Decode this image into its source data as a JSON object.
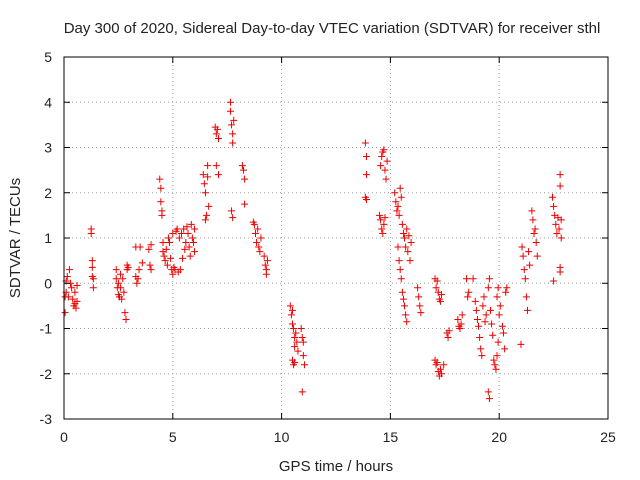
{
  "chart_data": {
    "type": "scatter",
    "title": "Day 300 of 2020, Sidereal Day-to-day VTEC variation (SDTVAR) for receiver sthl",
    "xlabel": "GPS time / hours",
    "ylabel": "SDTVAR / TECUs",
    "xlim": [
      0,
      25
    ],
    "ylim": [
      -3,
      5
    ],
    "xticks": [
      0,
      5,
      10,
      15,
      20,
      25
    ],
    "yticks": [
      -3,
      -2,
      -1,
      0,
      1,
      2,
      3,
      4,
      5
    ],
    "grid": true,
    "marker": "plus",
    "color": "#ee0000",
    "points": [
      [
        0.05,
        -0.65
      ],
      [
        0.05,
        -0.3
      ],
      [
        0.1,
        0.05
      ],
      [
        0.1,
        -0.2
      ],
      [
        0.15,
        0.15
      ],
      [
        0.2,
        -0.3
      ],
      [
        0.25,
        0.3
      ],
      [
        0.3,
        0.0
      ],
      [
        0.35,
        -0.1
      ],
      [
        0.4,
        -0.35
      ],
      [
        0.45,
        -0.5
      ],
      [
        0.5,
        -0.45
      ],
      [
        0.5,
        -0.2
      ],
      [
        0.55,
        -0.55
      ],
      [
        0.6,
        -0.4
      ],
      [
        0.6,
        -0.05
      ],
      [
        1.25,
        1.2
      ],
      [
        1.25,
        1.1
      ],
      [
        1.3,
        0.5
      ],
      [
        1.3,
        0.35
      ],
      [
        1.3,
        0.15
      ],
      [
        1.35,
        0.1
      ],
      [
        1.35,
        -0.1
      ],
      [
        2.4,
        0.3
      ],
      [
        2.4,
        0.1
      ],
      [
        2.45,
        -0.1
      ],
      [
        2.5,
        -0.25
      ],
      [
        2.5,
        0.0
      ],
      [
        2.55,
        -0.3
      ],
      [
        2.6,
        0.2
      ],
      [
        2.6,
        -0.1
      ],
      [
        2.65,
        -0.35
      ],
      [
        2.7,
        0.1
      ],
      [
        2.75,
        -0.2
      ],
      [
        2.8,
        -0.65
      ],
      [
        2.85,
        -0.8
      ],
      [
        2.9,
        0.4
      ],
      [
        2.9,
        0.3
      ],
      [
        2.95,
        0.35
      ],
      [
        3.3,
        0.8
      ],
      [
        3.3,
        0.15
      ],
      [
        3.35,
        0.0
      ],
      [
        3.4,
        0.1
      ],
      [
        3.45,
        0.3
      ],
      [
        3.5,
        0.8
      ],
      [
        3.6,
        0.45
      ],
      [
        3.9,
        0.75
      ],
      [
        3.95,
        0.4
      ],
      [
        4.0,
        0.3
      ],
      [
        4.0,
        0.85
      ],
      [
        4.4,
        2.3
      ],
      [
        4.45,
        2.1
      ],
      [
        4.45,
        1.8
      ],
      [
        4.5,
        1.6
      ],
      [
        4.5,
        1.5
      ],
      [
        4.55,
        0.9
      ],
      [
        4.55,
        0.7
      ],
      [
        4.6,
        0.6
      ],
      [
        4.65,
        0.5
      ],
      [
        4.7,
        0.75
      ],
      [
        4.75,
        0.4
      ],
      [
        4.8,
        1.0
      ],
      [
        4.85,
        0.9
      ],
      [
        4.9,
        0.55
      ],
      [
        4.95,
        0.3
      ],
      [
        5.0,
        0.2
      ],
      [
        5.0,
        1.1
      ],
      [
        5.05,
        0.35
      ],
      [
        5.1,
        0.3
      ],
      [
        5.15,
        1.15
      ],
      [
        5.2,
        1.2
      ],
      [
        5.25,
        0.25
      ],
      [
        5.3,
        1.0
      ],
      [
        5.35,
        0.3
      ],
      [
        5.4,
        1.1
      ],
      [
        5.45,
        0.55
      ],
      [
        5.5,
        1.2
      ],
      [
        5.55,
        0.75
      ],
      [
        5.6,
        0.9
      ],
      [
        5.65,
        1.25
      ],
      [
        5.7,
        1.1
      ],
      [
        5.75,
        0.8
      ],
      [
        5.8,
        0.6
      ],
      [
        5.85,
        1.3
      ],
      [
        5.9,
        1.0
      ],
      [
        5.95,
        0.9
      ],
      [
        6.0,
        1.2
      ],
      [
        6.0,
        0.7
      ],
      [
        6.4,
        2.4
      ],
      [
        6.45,
        2.2
      ],
      [
        6.5,
        2.0
      ],
      [
        6.5,
        1.4
      ],
      [
        6.55,
        1.5
      ],
      [
        6.6,
        2.6
      ],
      [
        6.6,
        2.35
      ],
      [
        6.65,
        1.7
      ],
      [
        6.95,
        3.45
      ],
      [
        7.0,
        3.3
      ],
      [
        7.05,
        3.4
      ],
      [
        7.1,
        3.2
      ],
      [
        7.0,
        2.6
      ],
      [
        7.1,
        2.4
      ],
      [
        7.65,
        4.0
      ],
      [
        7.65,
        3.8
      ],
      [
        7.7,
        3.5
      ],
      [
        7.75,
        3.3
      ],
      [
        7.75,
        3.1
      ],
      [
        7.8,
        3.6
      ],
      [
        7.7,
        1.6
      ],
      [
        7.75,
        1.45
      ],
      [
        8.2,
        2.6
      ],
      [
        8.25,
        2.5
      ],
      [
        8.3,
        2.3
      ],
      [
        8.3,
        1.75
      ],
      [
        8.7,
        1.35
      ],
      [
        8.75,
        1.3
      ],
      [
        8.8,
        1.1
      ],
      [
        8.85,
        0.9
      ],
      [
        8.9,
        1.2
      ],
      [
        8.95,
        0.8
      ],
      [
        9.0,
        0.7
      ],
      [
        9.05,
        1.0
      ],
      [
        9.2,
        0.6
      ],
      [
        9.25,
        0.4
      ],
      [
        9.3,
        0.3
      ],
      [
        9.3,
        0.2
      ],
      [
        9.35,
        0.5
      ],
      [
        10.4,
        -0.5
      ],
      [
        10.45,
        -0.7
      ],
      [
        10.5,
        -0.6
      ],
      [
        10.5,
        -0.9
      ],
      [
        10.55,
        -1.0
      ],
      [
        10.6,
        -1.2
      ],
      [
        10.6,
        -1.4
      ],
      [
        10.65,
        -1.1
      ],
      [
        10.7,
        -1.3
      ],
      [
        10.75,
        -1.5
      ],
      [
        10.5,
        -1.7
      ],
      [
        10.55,
        -1.8
      ],
      [
        10.6,
        -1.75
      ],
      [
        10.9,
        -1.0
      ],
      [
        10.95,
        -1.2
      ],
      [
        11.0,
        -1.6
      ],
      [
        11.05,
        -1.8
      ],
      [
        10.95,
        -2.4
      ],
      [
        11.0,
        -1.3
      ],
      [
        13.85,
        3.1
      ],
      [
        13.9,
        2.8
      ],
      [
        13.9,
        2.4
      ],
      [
        13.85,
        1.9
      ],
      [
        13.9,
        1.85
      ],
      [
        14.55,
        2.6
      ],
      [
        14.6,
        2.8
      ],
      [
        14.65,
        2.9
      ],
      [
        14.7,
        2.95
      ],
      [
        14.75,
        2.5
      ],
      [
        14.8,
        2.3
      ],
      [
        14.85,
        2.7
      ],
      [
        14.5,
        1.5
      ],
      [
        14.55,
        1.4
      ],
      [
        14.6,
        1.2
      ],
      [
        14.65,
        1.1
      ],
      [
        14.7,
        1.3
      ],
      [
        14.75,
        1.45
      ],
      [
        15.2,
        2.0
      ],
      [
        15.25,
        1.8
      ],
      [
        15.3,
        1.6
      ],
      [
        15.35,
        1.7
      ],
      [
        15.4,
        1.5
      ],
      [
        15.45,
        2.1
      ],
      [
        15.5,
        1.9
      ],
      [
        15.55,
        1.3
      ],
      [
        15.6,
        1.1
      ],
      [
        15.65,
        1.0
      ],
      [
        15.7,
        0.8
      ],
      [
        15.75,
        1.2
      ],
      [
        15.8,
        0.7
      ],
      [
        15.85,
        1.05
      ],
      [
        15.9,
        0.5
      ],
      [
        15.95,
        0.9
      ],
      [
        15.35,
        0.8
      ],
      [
        15.4,
        0.5
      ],
      [
        15.45,
        0.3
      ],
      [
        15.5,
        0.1
      ],
      [
        15.55,
        -0.2
      ],
      [
        15.6,
        -0.35
      ],
      [
        15.65,
        -0.5
      ],
      [
        15.7,
        -0.7
      ],
      [
        15.75,
        -0.85
      ],
      [
        16.25,
        -0.1
      ],
      [
        16.3,
        -0.3
      ],
      [
        16.35,
        -0.5
      ],
      [
        16.4,
        -0.65
      ],
      [
        17.05,
        0.1
      ],
      [
        17.1,
        -0.1
      ],
      [
        17.15,
        0.05
      ],
      [
        17.2,
        -0.2
      ],
      [
        17.25,
        -0.35
      ],
      [
        17.3,
        -0.4
      ],
      [
        17.35,
        -0.25
      ],
      [
        17.05,
        -1.7
      ],
      [
        17.1,
        -1.8
      ],
      [
        17.15,
        -1.75
      ],
      [
        17.2,
        -1.95
      ],
      [
        17.25,
        -2.05
      ],
      [
        17.3,
        -1.9
      ],
      [
        17.35,
        -2.0
      ],
      [
        17.45,
        -1.8
      ],
      [
        17.6,
        -1.1
      ],
      [
        17.65,
        -1.2
      ],
      [
        17.7,
        -1.05
      ],
      [
        18.1,
        -0.8
      ],
      [
        18.15,
        -0.95
      ],
      [
        18.2,
        -1.0
      ],
      [
        18.25,
        -0.9
      ],
      [
        18.3,
        -0.7
      ],
      [
        18.5,
        0.1
      ],
      [
        18.55,
        -0.3
      ],
      [
        18.6,
        -0.2
      ],
      [
        18.8,
        0.1
      ],
      [
        18.9,
        -0.4
      ],
      [
        18.95,
        -0.6
      ],
      [
        19.0,
        -0.8
      ],
      [
        19.05,
        -0.95
      ],
      [
        19.1,
        -1.2
      ],
      [
        19.15,
        -1.45
      ],
      [
        19.2,
        -1.6
      ],
      [
        19.25,
        -0.5
      ],
      [
        19.3,
        -0.3
      ],
      [
        19.35,
        -0.85
      ],
      [
        19.4,
        -0.7
      ],
      [
        19.5,
        -2.4
      ],
      [
        19.55,
        -2.55
      ],
      [
        19.5,
        -0.1
      ],
      [
        19.55,
        0.1
      ],
      [
        19.6,
        -0.6
      ],
      [
        19.65,
        -0.9
      ],
      [
        19.7,
        -1.15
      ],
      [
        19.75,
        -1.7
      ],
      [
        19.8,
        -1.8
      ],
      [
        19.85,
        -1.9
      ],
      [
        19.9,
        -1.6
      ],
      [
        19.95,
        -1.3
      ],
      [
        20.0,
        -0.7
      ],
      [
        20.05,
        -0.5
      ],
      [
        19.9,
        -0.3
      ],
      [
        19.95,
        -0.1
      ],
      [
        20.15,
        -0.95
      ],
      [
        20.2,
        -1.1
      ],
      [
        20.25,
        -1.45
      ],
      [
        20.3,
        -0.2
      ],
      [
        20.35,
        -0.1
      ],
      [
        21.0,
        -1.35
      ],
      [
        21.05,
        0.8
      ],
      [
        21.1,
        0.6
      ],
      [
        21.15,
        0.3
      ],
      [
        21.2,
        0.1
      ],
      [
        21.25,
        -0.3
      ],
      [
        21.3,
        -0.6
      ],
      [
        21.35,
        0.7
      ],
      [
        21.4,
        0.4
      ],
      [
        21.5,
        1.6
      ],
      [
        21.55,
        1.4
      ],
      [
        21.6,
        1.1
      ],
      [
        21.65,
        1.2
      ],
      [
        21.7,
        0.9
      ],
      [
        21.75,
        0.6
      ],
      [
        22.45,
        1.9
      ],
      [
        22.5,
        1.7
      ],
      [
        22.55,
        1.5
      ],
      [
        22.6,
        1.3
      ],
      [
        22.65,
        1.1
      ],
      [
        22.5,
        0.05
      ],
      [
        22.7,
        1.45
      ],
      [
        22.75,
        1.2
      ],
      [
        22.8,
        2.4
      ],
      [
        22.8,
        2.15
      ],
      [
        22.85,
        1.4
      ],
      [
        22.85,
        1.0
      ],
      [
        22.8,
        0.35
      ],
      [
        22.8,
        0.25
      ]
    ]
  }
}
